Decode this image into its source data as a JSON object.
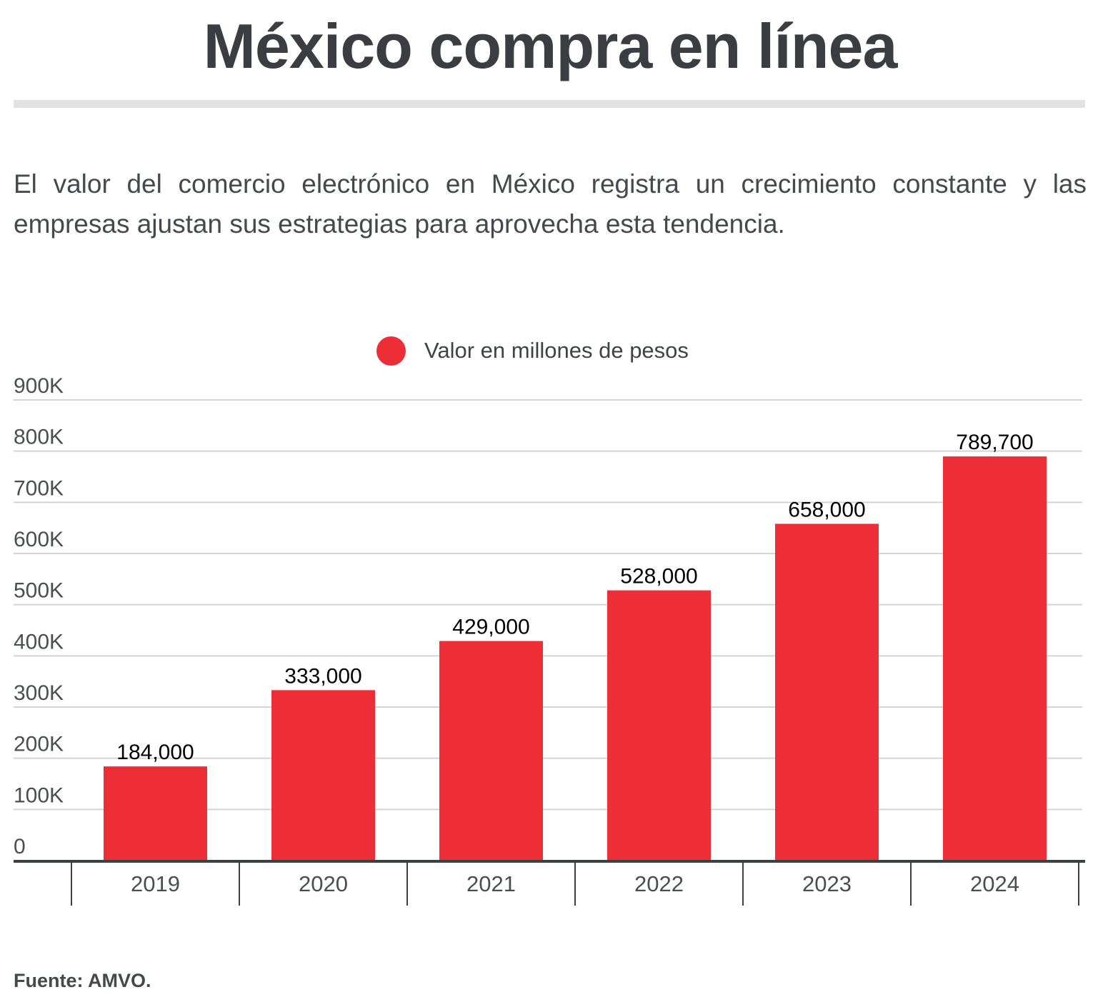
{
  "header": {
    "title": "México compra en línea",
    "subtitle": "El valor del comercio electrónico en México registra un crecimiento constante y las empresas ajustan sus estrategias para aprovecha esta tendencia."
  },
  "legend": {
    "label": "Valor en millones de pesos",
    "color": "#ee2e37"
  },
  "footer": {
    "source_label": "Fuente:",
    "source_value": "AMVO."
  },
  "chart_data": {
    "type": "bar",
    "categories": [
      "2019",
      "2020",
      "2021",
      "2022",
      "2023",
      "2024"
    ],
    "series": [
      {
        "name": "Valor en millones de pesos",
        "values": [
          184000,
          333000,
          429000,
          528000,
          658000,
          789700
        ],
        "color": "#ee2e37"
      }
    ],
    "data_labels": [
      "184,000",
      "333,000",
      "429,000",
      "528,000",
      "658,000",
      "789,700"
    ],
    "y_ticks": [
      0,
      100000,
      200000,
      300000,
      400000,
      500000,
      600000,
      700000,
      800000,
      900000
    ],
    "y_tick_labels": [
      "0",
      "100K",
      "200K",
      "300K",
      "400K",
      "500K",
      "600K",
      "700K",
      "800K",
      "900K"
    ],
    "ylim": [
      0,
      900000
    ],
    "grid": true,
    "legend_position": "top"
  }
}
